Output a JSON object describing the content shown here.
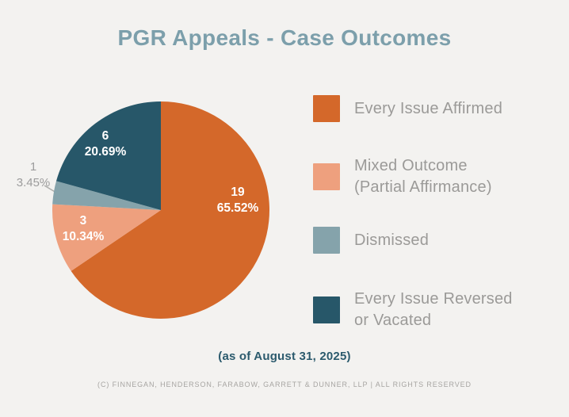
{
  "page": {
    "title": "PGR Appeals - Case Outcomes",
    "as_of": "(as of August 31, 2025)",
    "copyright": "(C) FINNEGAN, HENDERSON, FARABOW, GARRETT & DUNNER, LLP | ALL RIGHTS RESERVED"
  },
  "colors": {
    "background": "#F3F2F0",
    "title_text": "#7C9FAB",
    "affirmed": "#D4682A",
    "mixed": "#EEA07E",
    "dismissed": "#85A3AB",
    "reversed": "#275769",
    "inside_label_text": "#FFFFFF",
    "outside_label_text": "#9C9C9C",
    "legend_text": "#9B9A98",
    "as_of_text": "#2B5A6D",
    "copyright_text": "#A7A5A2"
  },
  "chart_data": {
    "type": "pie",
    "title": "PGR Appeals - Case Outcomes",
    "start_angle_deg": 0,
    "direction": "clockwise",
    "total": 29,
    "legend_position": "right",
    "slices": [
      {
        "label": "Every Issue Affirmed",
        "value": 19,
        "pct": "65.52%",
        "color": "#D4682A",
        "label_placement": "inside"
      },
      {
        "label": "Mixed Outcome (Partial Affirmance)",
        "value": 3,
        "pct": "10.34%",
        "color": "#EEA07E",
        "label_placement": "inside"
      },
      {
        "label": "Dismissed",
        "value": 1,
        "pct": "3.45%",
        "color": "#85A3AB",
        "label_placement": "outside"
      },
      {
        "label": "Every Issue Reversed or Vacated",
        "value": 6,
        "pct": "20.69%",
        "color": "#275769",
        "label_placement": "inside"
      }
    ]
  },
  "pie_labels": [
    {
      "value": "19",
      "pct": "65.52%"
    },
    {
      "value": "3",
      "pct": "10.34%"
    },
    {
      "value": "1",
      "pct": "3.45%"
    },
    {
      "value": "6",
      "pct": "20.69%"
    }
  ],
  "legend": {
    "items": [
      {
        "line1": "Every Issue Affirmed",
        "line2": "",
        "color": "#D4682A"
      },
      {
        "line1": "Mixed Outcome",
        "line2": "(Partial Affirmance)",
        "color": "#EEA07E"
      },
      {
        "line1": "Dismissed",
        "line2": "",
        "color": "#85A3AB"
      },
      {
        "line1": "Every Issue Reversed",
        "line2": "or Vacated",
        "color": "#275769"
      }
    ]
  }
}
